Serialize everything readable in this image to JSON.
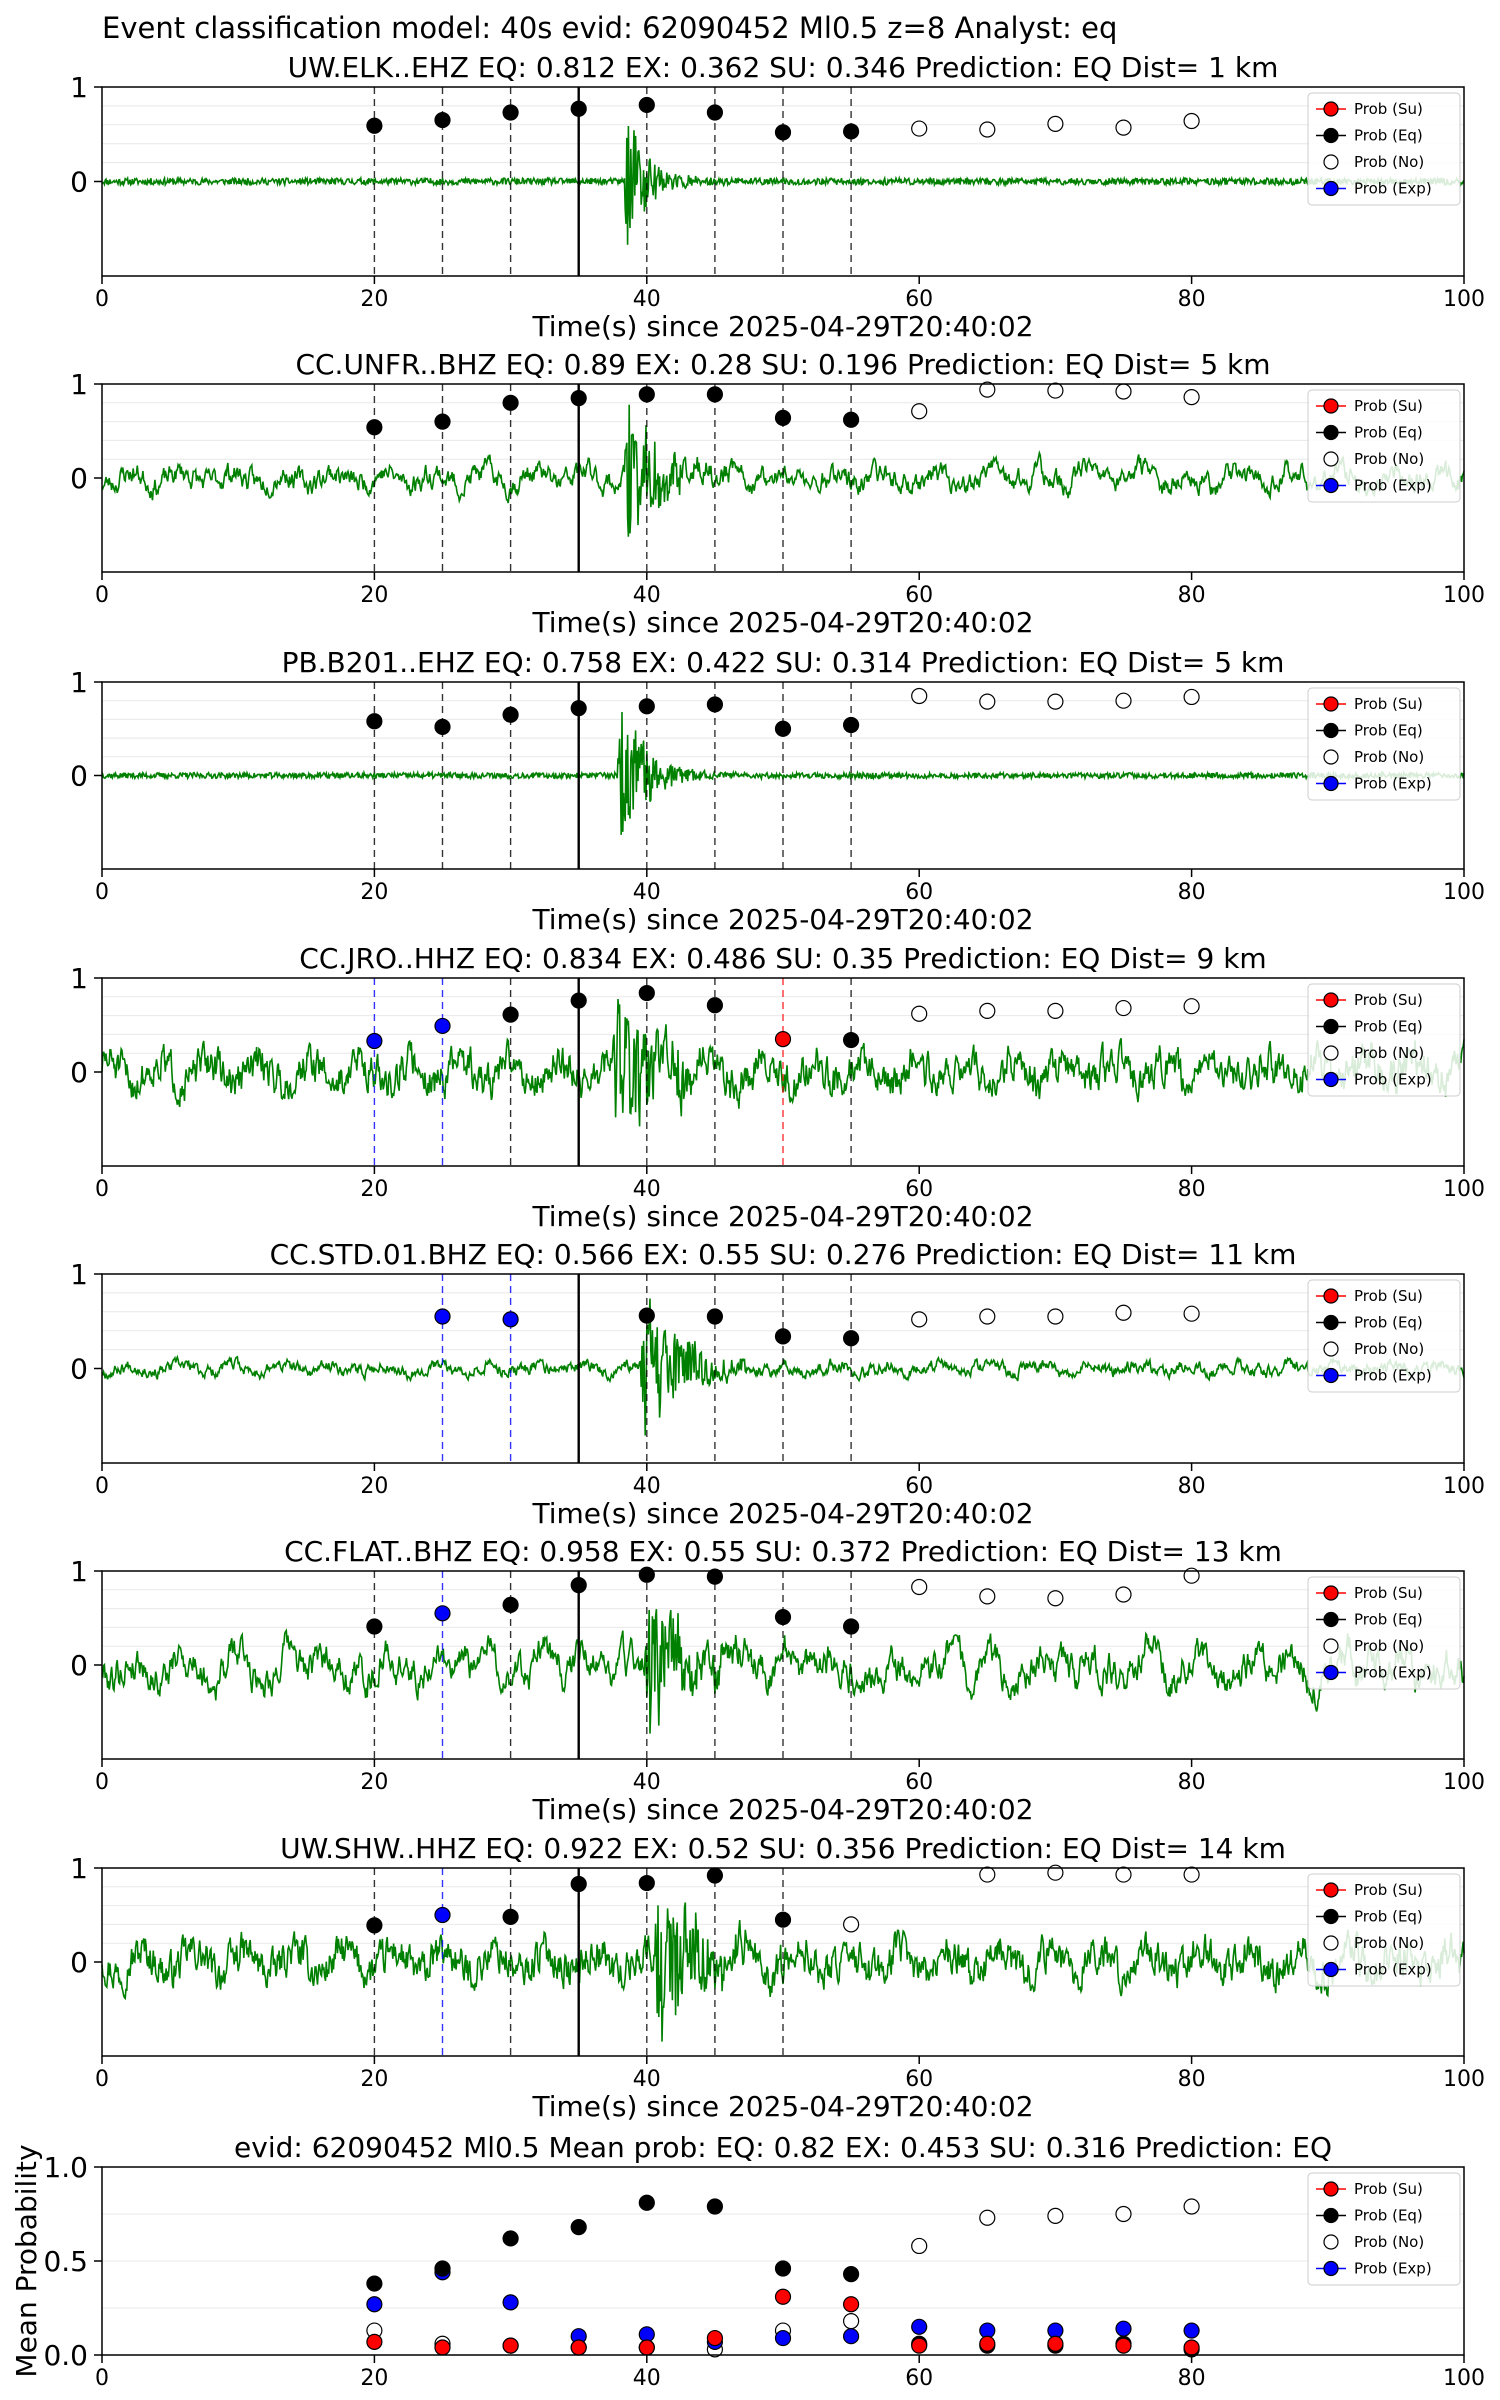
{
  "suptitle": "Event classification model: 40s evid: 62090452 Ml0.5 z=8 Analyst: eq",
  "legend_labels": [
    "Prob (Su)",
    "Prob (Eq)",
    "Prob (No)",
    "Prob (Exp)"
  ],
  "colors": {
    "waveform": "#008000",
    "su": "#ff0000",
    "eq": "#000000",
    "no": "#ffffff",
    "exp": "#0000ff",
    "window_line": "#000000",
    "pick_line": "#000000"
  },
  "chart_data": [
    {
      "type": "line",
      "title": "UW.ELK..EHZ   EQ: 0.812  EX: 0.362  SU: 0.346   Prediction: EQ    Dist= 1 km",
      "xlabel": "Time(s) since 2025-04-29T20:40:02",
      "ylabel": "",
      "xlim": [
        0,
        100
      ],
      "ylim": [
        -1,
        1
      ],
      "xticks": [
        0,
        20,
        40,
        60,
        80,
        100
      ],
      "yticks": [
        0,
        1
      ],
      "pick_time": 35,
      "waveform": {
        "noise": 0.035,
        "onset": 38.3,
        "peak": 1.0,
        "decay": 1.6,
        "seed": 11,
        "smooth": 0.0
      },
      "window_markers": [
        {
          "x": 20,
          "y": 0.59,
          "class": "eq"
        },
        {
          "x": 25,
          "y": 0.65,
          "class": "eq"
        },
        {
          "x": 30,
          "y": 0.73,
          "class": "eq"
        },
        {
          "x": 35,
          "y": 0.77,
          "class": "eq"
        },
        {
          "x": 40,
          "y": 0.81,
          "class": "eq"
        },
        {
          "x": 45,
          "y": 0.73,
          "class": "eq"
        },
        {
          "x": 50,
          "y": 0.52,
          "class": "eq"
        },
        {
          "x": 55,
          "y": 0.53,
          "class": "eq"
        }
      ],
      "no_markers": [
        {
          "x": 60,
          "y": 0.56
        },
        {
          "x": 65,
          "y": 0.55
        },
        {
          "x": 70,
          "y": 0.61
        },
        {
          "x": 75,
          "y": 0.57
        },
        {
          "x": 80,
          "y": 0.64
        }
      ]
    },
    {
      "type": "line",
      "title": "CC.UNFR..BHZ   EQ: 0.89  EX: 0.28  SU: 0.196   Prediction: EQ    Dist= 5 km",
      "xlabel": "Time(s) since 2025-04-29T20:40:02",
      "ylabel": "",
      "xlim": [
        0,
        100
      ],
      "ylim": [
        -1,
        1
      ],
      "xticks": [
        0,
        20,
        40,
        60,
        80,
        100
      ],
      "yticks": [
        0,
        1
      ],
      "pick_time": 35,
      "waveform": {
        "noise": 0.25,
        "onset": 38.3,
        "peak": 0.85,
        "decay": 2.2,
        "seed": 23,
        "smooth": 0.75
      },
      "window_markers": [
        {
          "x": 20,
          "y": 0.54,
          "class": "eq"
        },
        {
          "x": 25,
          "y": 0.6,
          "class": "eq"
        },
        {
          "x": 30,
          "y": 0.8,
          "class": "eq"
        },
        {
          "x": 35,
          "y": 0.85,
          "class": "eq"
        },
        {
          "x": 40,
          "y": 0.89,
          "class": "eq"
        },
        {
          "x": 45,
          "y": 0.89,
          "class": "eq"
        },
        {
          "x": 50,
          "y": 0.64,
          "class": "eq"
        },
        {
          "x": 55,
          "y": 0.62,
          "class": "eq"
        }
      ],
      "no_markers": [
        {
          "x": 60,
          "y": 0.71
        },
        {
          "x": 65,
          "y": 0.94
        },
        {
          "x": 70,
          "y": 0.93
        },
        {
          "x": 75,
          "y": 0.92
        },
        {
          "x": 80,
          "y": 0.86
        }
      ]
    },
    {
      "type": "line",
      "title": "PB.B201..EHZ   EQ: 0.758  EX: 0.422  SU: 0.314   Prediction: EQ    Dist= 5 km",
      "xlabel": "Time(s) since 2025-04-29T20:40:02",
      "ylabel": "",
      "xlim": [
        0,
        100
      ],
      "ylim": [
        -1,
        1
      ],
      "xticks": [
        0,
        20,
        40,
        60,
        80,
        100
      ],
      "yticks": [
        0,
        1
      ],
      "pick_time": 35,
      "waveform": {
        "noise": 0.03,
        "onset": 37.8,
        "peak": 0.95,
        "decay": 2.0,
        "seed": 37,
        "smooth": 0.2
      },
      "window_markers": [
        {
          "x": 20,
          "y": 0.58,
          "class": "eq"
        },
        {
          "x": 25,
          "y": 0.52,
          "class": "eq"
        },
        {
          "x": 30,
          "y": 0.65,
          "class": "eq"
        },
        {
          "x": 35,
          "y": 0.72,
          "class": "eq"
        },
        {
          "x": 40,
          "y": 0.74,
          "class": "eq"
        },
        {
          "x": 45,
          "y": 0.76,
          "class": "eq"
        },
        {
          "x": 50,
          "y": 0.5,
          "class": "eq"
        },
        {
          "x": 55,
          "y": 0.54,
          "class": "eq"
        }
      ],
      "no_markers": [
        {
          "x": 60,
          "y": 0.85
        },
        {
          "x": 65,
          "y": 0.79
        },
        {
          "x": 70,
          "y": 0.79
        },
        {
          "x": 75,
          "y": 0.8
        },
        {
          "x": 80,
          "y": 0.84
        }
      ]
    },
    {
      "type": "line",
      "title": "CC.JRO..HHZ   EQ: 0.834  EX: 0.486  SU: 0.35   Prediction: EQ    Dist= 9 km",
      "xlabel": "Time(s) since 2025-04-29T20:40:02",
      "ylabel": "",
      "xlim": [
        0,
        100
      ],
      "ylim": [
        -1,
        1
      ],
      "xticks": [
        0,
        20,
        40,
        60,
        80,
        100
      ],
      "yticks": [
        0,
        1
      ],
      "pick_time": 35,
      "waveform": {
        "noise": 0.45,
        "onset": 37.5,
        "peak": 0.9,
        "decay": 3.0,
        "seed": 51,
        "smooth": 0.6
      },
      "window_markers": [
        {
          "x": 20,
          "y": 0.33,
          "class": "exp"
        },
        {
          "x": 25,
          "y": 0.49,
          "class": "exp"
        },
        {
          "x": 30,
          "y": 0.61,
          "class": "eq"
        },
        {
          "x": 35,
          "y": 0.76,
          "class": "eq"
        },
        {
          "x": 40,
          "y": 0.84,
          "class": "eq"
        },
        {
          "x": 45,
          "y": 0.71,
          "class": "eq"
        },
        {
          "x": 50,
          "y": 0.35,
          "class": "su"
        },
        {
          "x": 55,
          "y": 0.34,
          "class": "eq"
        }
      ],
      "no_markers": [
        {
          "x": 60,
          "y": 0.62
        },
        {
          "x": 65,
          "y": 0.65
        },
        {
          "x": 70,
          "y": 0.65
        },
        {
          "x": 75,
          "y": 0.68
        },
        {
          "x": 80,
          "y": 0.7
        }
      ]
    },
    {
      "type": "line",
      "title": "CC.STD.01.BHZ   EQ: 0.566  EX: 0.55  SU: 0.276   Prediction: EQ    Dist= 11 km",
      "xlabel": "Time(s) since 2025-04-29T20:40:02",
      "ylabel": "",
      "xlim": [
        0,
        100
      ],
      "ylim": [
        -1,
        1
      ],
      "xticks": [
        0,
        20,
        40,
        60,
        80,
        100
      ],
      "yticks": [
        0,
        1
      ],
      "pick_time": 35,
      "waveform": {
        "noise": 0.14,
        "onset": 39.5,
        "peak": 0.95,
        "decay": 2.5,
        "seed": 67,
        "smooth": 0.7
      },
      "window_markers": [
        {
          "x": 25,
          "y": 0.55,
          "class": "exp"
        },
        {
          "x": 30,
          "y": 0.52,
          "class": "exp"
        },
        {
          "x": 40,
          "y": 0.56,
          "class": "eq"
        },
        {
          "x": 45,
          "y": 0.55,
          "class": "eq"
        },
        {
          "x": 50,
          "y": 0.34,
          "class": "eq"
        },
        {
          "x": 55,
          "y": 0.32,
          "class": "eq"
        }
      ],
      "no_markers": [
        {
          "x": 60,
          "y": 0.52
        },
        {
          "x": 65,
          "y": 0.55
        },
        {
          "x": 70,
          "y": 0.55
        },
        {
          "x": 75,
          "y": 0.59
        },
        {
          "x": 80,
          "y": 0.58
        }
      ]
    },
    {
      "type": "line",
      "title": "CC.FLAT..BHZ   EQ: 0.958  EX: 0.55  SU: 0.372   Prediction: EQ    Dist= 13 km",
      "xlabel": "Time(s) since 2025-04-29T20:40:02",
      "ylabel": "",
      "xlim": [
        0,
        100
      ],
      "ylim": [
        -1,
        1
      ],
      "xticks": [
        0,
        20,
        40,
        60,
        80,
        100
      ],
      "yticks": [
        0,
        1
      ],
      "pick_time": 35,
      "waveform": {
        "noise": 0.38,
        "onset": 39.8,
        "peak": 0.8,
        "decay": 2.5,
        "seed": 79,
        "smooth": 0.85
      },
      "window_markers": [
        {
          "x": 20,
          "y": 0.41,
          "class": "eq"
        },
        {
          "x": 25,
          "y": 0.55,
          "class": "exp"
        },
        {
          "x": 30,
          "y": 0.64,
          "class": "eq"
        },
        {
          "x": 35,
          "y": 0.85,
          "class": "eq"
        },
        {
          "x": 40,
          "y": 0.96,
          "class": "eq"
        },
        {
          "x": 45,
          "y": 0.94,
          "class": "eq"
        },
        {
          "x": 50,
          "y": 0.51,
          "class": "eq"
        },
        {
          "x": 55,
          "y": 0.41,
          "class": "eq"
        }
      ],
      "no_markers": [
        {
          "x": 60,
          "y": 0.83
        },
        {
          "x": 65,
          "y": 0.73
        },
        {
          "x": 70,
          "y": 0.71
        },
        {
          "x": 75,
          "y": 0.75
        },
        {
          "x": 80,
          "y": 0.95
        }
      ]
    },
    {
      "type": "line",
      "title": "UW.SHW..HHZ   EQ: 0.922  EX: 0.52  SU: 0.356   Prediction: EQ    Dist= 14 km",
      "xlabel": "Time(s) since 2025-04-29T20:40:02",
      "ylabel": "",
      "xlim": [
        0,
        100
      ],
      "ylim": [
        -1,
        1
      ],
      "xticks": [
        0,
        20,
        40,
        60,
        80,
        100
      ],
      "yticks": [
        0,
        1
      ],
      "pick_time": 35,
      "waveform": {
        "noise": 0.45,
        "onset": 40.5,
        "peak": 1.0,
        "decay": 3.0,
        "seed": 97,
        "smooth": 0.55
      },
      "window_markers": [
        {
          "x": 20,
          "y": 0.39,
          "class": "eq"
        },
        {
          "x": 25,
          "y": 0.5,
          "class": "exp"
        },
        {
          "x": 30,
          "y": 0.48,
          "class": "eq"
        },
        {
          "x": 35,
          "y": 0.83,
          "class": "eq"
        },
        {
          "x": 40,
          "y": 0.84,
          "class": "eq"
        },
        {
          "x": 45,
          "y": 0.92,
          "class": "eq"
        },
        {
          "x": 50,
          "y": 0.45,
          "class": "eq"
        }
      ],
      "no_markers": [
        {
          "x": 55,
          "y": 0.4
        },
        {
          "x": 65,
          "y": 0.93
        },
        {
          "x": 70,
          "y": 0.95
        },
        {
          "x": 75,
          "y": 0.93
        },
        {
          "x": 80,
          "y": 0.93
        }
      ]
    },
    {
      "type": "scatter",
      "title": "evid: 62090452  Ml0.5   Mean prob:   EQ: 0.82  EX: 0.453  SU: 0.316   Prediction: EQ",
      "xlabel": "",
      "ylabel": "Mean Probability",
      "xlim": [
        0,
        100
      ],
      "ylim": [
        0,
        1
      ],
      "xticks": [
        0,
        20,
        40,
        60,
        80,
        100
      ],
      "yticks": [
        0.0,
        0.5,
        1.0
      ],
      "x": [
        20,
        25,
        30,
        35,
        40,
        45,
        50,
        55,
        60,
        65,
        70,
        75,
        80
      ],
      "series": [
        {
          "name": "Prob (No)",
          "class": "no",
          "values": [
            0.13,
            0.06,
            0.05,
            0.04,
            0.04,
            0.03,
            0.13,
            0.18,
            0.58,
            0.73,
            0.74,
            0.75,
            0.79
          ]
        },
        {
          "name": "Prob (Exp)",
          "class": "exp",
          "values": [
            0.27,
            0.44,
            0.28,
            0.1,
            0.11,
            0.07,
            0.09,
            0.1,
            0.15,
            0.13,
            0.13,
            0.14,
            0.13
          ]
        },
        {
          "name": "Prob (Eq)",
          "class": "eq",
          "values": [
            0.38,
            0.46,
            0.62,
            0.68,
            0.81,
            0.79,
            0.46,
            0.43,
            0.06,
            0.05,
            0.05,
            0.06,
            0.03
          ]
        },
        {
          "name": "Prob (Su)",
          "class": "su",
          "values": [
            0.07,
            0.04,
            0.05,
            0.04,
            0.04,
            0.09,
            0.31,
            0.27,
            0.05,
            0.06,
            0.06,
            0.05,
            0.04
          ]
        }
      ]
    }
  ]
}
